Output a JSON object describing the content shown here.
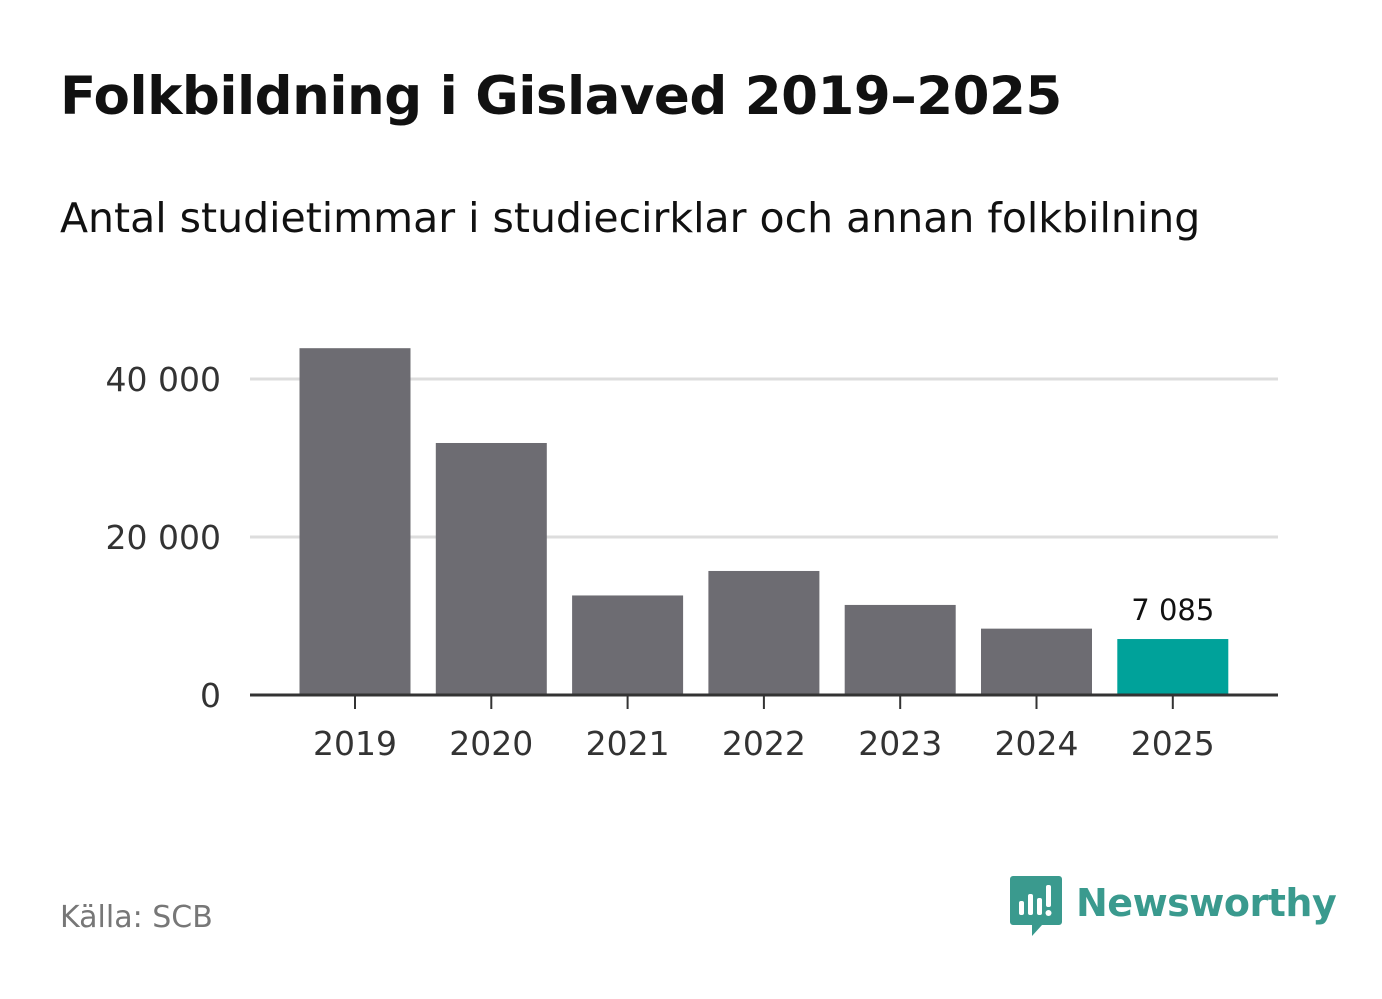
{
  "title": "Folkbildning i Gislaved 2019–2025",
  "subtitle": "Antal studietimmar i studiecirklar och annan folkbilning",
  "source": "Källa: SCB",
  "brand": {
    "name": "Newsworthy",
    "icon": "newsworthy-logo-icon",
    "color": "#3a9a8e"
  },
  "colors": {
    "bar": "#6d6c72",
    "highlight": "#00a29a",
    "grid": "#dddddd",
    "axis": "#333333"
  },
  "chart_data": {
    "type": "bar",
    "title": "Folkbildning i Gislaved 2019–2025",
    "subtitle": "Antal studietimmar i studiecirklar och annan folkbilning",
    "xlabel": "",
    "ylabel": "",
    "categories": [
      "2019",
      "2020",
      "2021",
      "2022",
      "2023",
      "2024",
      "2025"
    ],
    "values": [
      43900,
      31900,
      12600,
      15700,
      11400,
      8400,
      7085
    ],
    "highlight_index": 6,
    "data_labels": [
      {
        "index": 6,
        "text": "7 085"
      }
    ],
    "ylim": [
      0,
      44000
    ],
    "yticks": [
      0,
      20000,
      40000
    ],
    "ytick_labels": [
      "0",
      "20 000",
      "40 000"
    ],
    "grid": true,
    "legend": "none"
  }
}
